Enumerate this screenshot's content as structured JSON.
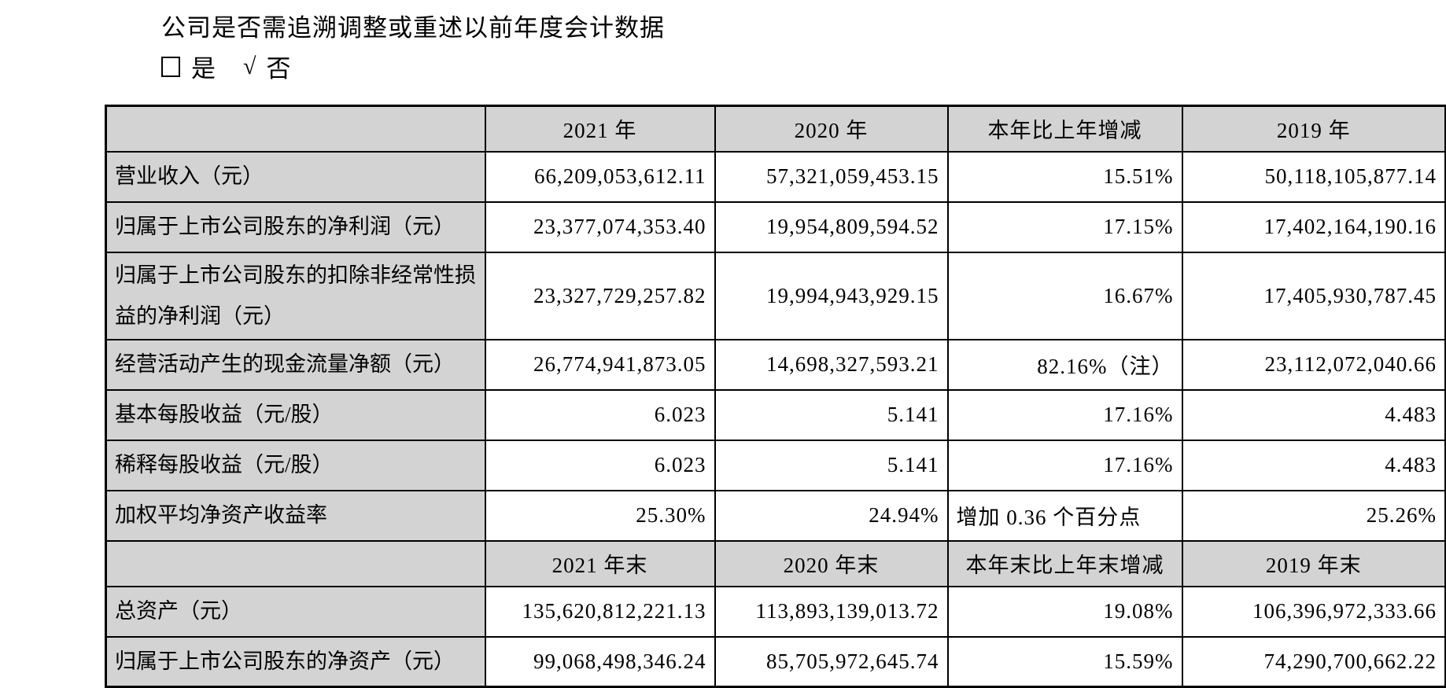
{
  "colors": {
    "cell_bg_gray": "#d3d3d3",
    "border": "#000000",
    "background": "#ffffff"
  },
  "question_line": {
    "text": "公司是否需追溯调整或重述以前年度会计数据"
  },
  "checkbox_line": {
    "yes_label": "是",
    "check_symbol": "√",
    "no_label": "否"
  },
  "table": {
    "sections": [
      {
        "headers": [
          "",
          "2021 年",
          "2020 年",
          "本年比上年增减",
          "2019 年"
        ],
        "rows": [
          {
            "label": "营业收入（元）",
            "y2021": "66,209,053,612.11",
            "y2020": "57,321,059,453.15",
            "change": "15.51%",
            "y2019": "50,118,105,877.14"
          },
          {
            "label": "归属于上市公司股东的净利润（元）",
            "y2021": "23,377,074,353.40",
            "y2020": "19,954,809,594.52",
            "change": "17.15%",
            "y2019": "17,402,164,190.16"
          },
          {
            "label": "归属于上市公司股东的扣除非经常性损益的净利润（元）",
            "y2021": "23,327,729,257.82",
            "y2020": "19,994,943,929.15",
            "change": "16.67%",
            "y2019": "17,405,930,787.45"
          },
          {
            "label": "经营活动产生的现金流量净额（元）",
            "y2021": "26,774,941,873.05",
            "y2020": "14,698,327,593.21",
            "change": "82.16%（注）",
            "y2019": "23,112,072,040.66"
          },
          {
            "label": "基本每股收益（元/股）",
            "y2021": "6.023",
            "y2020": "5.141",
            "change": "17.16%",
            "y2019": "4.483"
          },
          {
            "label": "稀释每股收益（元/股）",
            "y2021": "6.023",
            "y2020": "5.141",
            "change": "17.16%",
            "y2019": "4.483"
          },
          {
            "label": "加权平均净资产收益率",
            "y2021": "25.30%",
            "y2020": "24.94%",
            "change": "增加 0.36 个百分点",
            "change_is_text": true,
            "y2019": "25.26%"
          }
        ]
      },
      {
        "headers": [
          "",
          "2021 年末",
          "2020 年末",
          "本年末比上年末增减",
          "2019 年末"
        ],
        "rows": [
          {
            "label": "总资产（元）",
            "y2021": "135,620,812,221.13",
            "y2020": "113,893,139,013.72",
            "change": "19.08%",
            "y2019": "106,396,972,333.66"
          },
          {
            "label": "归属于上市公司股东的净资产（元）",
            "y2021": "99,068,498,346.24",
            "y2020": "85,705,972,645.74",
            "change": "15.59%",
            "y2019": "74,290,700,662.22"
          }
        ]
      }
    ]
  }
}
